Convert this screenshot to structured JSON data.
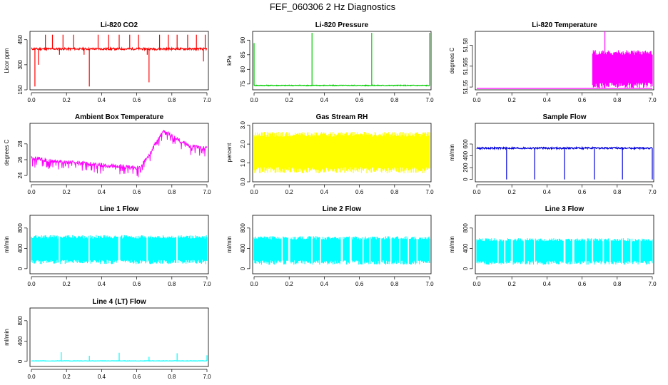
{
  "figure": {
    "title": "FEF_060306  2 Hz Diagnostics"
  },
  "chart_data": [
    {
      "id": "co2",
      "type": "line",
      "title": "Li-820 CO2",
      "ylabel": "Licor ppm",
      "xlabel": "",
      "color": "#ff0000",
      "xlim": [
        0.0,
        7.0
      ],
      "ylim": [
        150,
        500
      ],
      "xticks": [
        "0.0",
        "0.2",
        "0.4",
        "0.6",
        "0.8",
        "7.0"
      ],
      "yticks": [
        {
          "v": 150,
          "label": "150"
        },
        {
          "v": 300,
          "label": "300"
        },
        {
          "v": 450,
          "label": "450"
        }
      ],
      "baseline": 395,
      "noise": 6,
      "spikes": [
        [
          0.08,
          480
        ],
        [
          0.12,
          480
        ],
        [
          0.18,
          480
        ],
        [
          0.24,
          480
        ],
        [
          0.33,
          170
        ],
        [
          0.38,
          480
        ],
        [
          0.44,
          480
        ],
        [
          0.5,
          480
        ],
        [
          0.56,
          480
        ],
        [
          0.61,
          480
        ],
        [
          0.67,
          195
        ],
        [
          0.73,
          480
        ],
        [
          0.78,
          480
        ],
        [
          0.83,
          480
        ],
        [
          0.89,
          480
        ],
        [
          0.94,
          480
        ],
        [
          0.99,
          480
        ]
      ],
      "dips": [
        [
          0.02,
          170
        ],
        [
          0.04,
          300
        ],
        [
          0.16,
          360
        ],
        [
          0.3,
          360
        ],
        [
          0.66,
          360
        ],
        [
          0.98,
          320
        ]
      ]
    },
    {
      "id": "pressure",
      "type": "line",
      "title": "Li-820 Pressure",
      "ylabel": "kPa",
      "xlabel": "",
      "color": "#00cc00",
      "xlim": [
        0.0,
        7.0
      ],
      "ylim": [
        73,
        93
      ],
      "xticks": [
        "0.0",
        "0.2",
        "0.4",
        "0.6",
        "0.8",
        "7.0"
      ],
      "yticks": [
        {
          "v": 75,
          "label": "75"
        },
        {
          "v": 80,
          "label": "80"
        },
        {
          "v": 85,
          "label": "85"
        },
        {
          "v": 90,
          "label": "90"
        }
      ],
      "baseline": 74.5,
      "noise": 0.15,
      "spikes": [
        [
          0.0,
          89
        ],
        [
          0.33,
          92.5
        ],
        [
          0.67,
          92.5
        ],
        [
          1.0,
          92.5
        ]
      ],
      "dips": []
    },
    {
      "id": "temperature",
      "type": "line",
      "title": "Li-820 Temperature",
      "ylabel": "degrees C",
      "xlabel": "",
      "color": "#ff00ff",
      "xlim": [
        0.0,
        7.0
      ],
      "ylim": [
        51.548,
        51.59
      ],
      "xticks": [
        "0.0",
        "0.2",
        "0.4",
        "0.6",
        "0.8",
        "7.0"
      ],
      "yticks": [
        {
          "v": 51.55,
          "label": "51.55"
        },
        {
          "v": 51.565,
          "label": "51.565"
        },
        {
          "v": 51.58,
          "label": "51.58"
        }
      ],
      "baseline": 51.549,
      "band": [
        0.66,
        1.0,
        51.549,
        51.5765
      ],
      "noise": 0,
      "spikes": [
        [
          0.73,
          51.59
        ]
      ],
      "dips": []
    },
    {
      "id": "ambient",
      "type": "line",
      "title": "Ambient Box Temperature",
      "ylabel": "degrees C",
      "xlabel": "",
      "color": "#ff00ff",
      "xlim": [
        0.0,
        7.0
      ],
      "ylim": [
        23.2,
        30.6
      ],
      "xticks": [
        "0.0",
        "0.2",
        "0.4",
        "0.6",
        "0.8",
        "7.0"
      ],
      "yticks": [
        {
          "v": 24,
          "label": "24"
        },
        {
          "v": 26,
          "label": "26"
        },
        {
          "v": 28,
          "label": "28"
        }
      ],
      "profile": [
        [
          0.0,
          26.5
        ],
        [
          0.12,
          26.1
        ],
        [
          0.3,
          25.8
        ],
        [
          0.5,
          25.4
        ],
        [
          0.62,
          25.2
        ],
        [
          0.68,
          27.3
        ],
        [
          0.75,
          29.9
        ],
        [
          0.83,
          28.9
        ],
        [
          0.9,
          28.0
        ],
        [
          1.0,
          27.7
        ]
      ],
      "noise": 0.9
    },
    {
      "id": "rh",
      "type": "line",
      "title": "Gas Stream RH",
      "ylabel": "percent",
      "xlabel": "",
      "color": "#ffff00",
      "xlim": [
        0.0,
        7.0
      ],
      "ylim": [
        0.0,
        3.1
      ],
      "xticks": [
        "0.0",
        "0.2",
        "0.4",
        "0.6",
        "0.8",
        "7.0"
      ],
      "yticks": [
        {
          "v": 0.0,
          "label": "0.0"
        },
        {
          "v": 1.0,
          "label": "1.0"
        },
        {
          "v": 2.0,
          "label": "2.0"
        },
        {
          "v": 3.0,
          "label": "3.0"
        }
      ],
      "band": [
        0.0,
        1.0,
        0.45,
        2.65
      ],
      "noise": 0
    },
    {
      "id": "sample_flow",
      "type": "line",
      "title": "Sample Flow",
      "ylabel": "ml/min",
      "xlabel": "",
      "color": "#0000dd",
      "xlim": [
        0.0,
        7.0
      ],
      "ylim": [
        -40,
        950
      ],
      "xticks": [
        "0.0",
        "0.2",
        "0.4",
        "0.6",
        "0.8",
        "7.0"
      ],
      "yticks": [
        {
          "v": 0,
          "label": "0"
        },
        {
          "v": 200,
          "label": "200"
        },
        {
          "v": 400,
          "label": "400"
        },
        {
          "v": 600,
          "label": "600"
        }
      ],
      "baseline": 530,
      "noise": 15,
      "spikes": [
        [
          0.17,
          0
        ],
        [
          0.33,
          0
        ],
        [
          0.5,
          0
        ],
        [
          0.67,
          0
        ],
        [
          0.83,
          0
        ],
        [
          1.0,
          0
        ]
      ],
      "dips": []
    },
    {
      "id": "line1",
      "type": "line",
      "title": "Line 1 Flow",
      "ylabel": "ml/min",
      "xlabel": "",
      "color": "#00ffff",
      "xlim": [
        0.0,
        7.0
      ],
      "ylim": [
        -100,
        1050
      ],
      "xticks": [
        "0.0",
        "0.2",
        "0.4",
        "0.6",
        "0.8",
        "7.0"
      ],
      "yticks": [
        {
          "v": 0,
          "label": "0"
        },
        {
          "v": 400,
          "label": "400"
        },
        {
          "v": 800,
          "label": "800"
        }
      ],
      "band": [
        0.0,
        1.0,
        90,
        660
      ],
      "noise": 0,
      "gaps": [
        0.16,
        0.33,
        0.5,
        0.66,
        0.83
      ]
    },
    {
      "id": "line2",
      "type": "line",
      "title": "Line 2 Flow",
      "ylabel": "ml/min",
      "xlabel": "",
      "color": "#00ffff",
      "xlim": [
        0.0,
        7.0
      ],
      "ylim": [
        -100,
        1050
      ],
      "xticks": [
        "0.0",
        "0.2",
        "0.4",
        "0.6",
        "0.8",
        "7.0"
      ],
      "yticks": [
        {
          "v": 0,
          "label": "0"
        },
        {
          "v": 400,
          "label": "400"
        },
        {
          "v": 800,
          "label": "800"
        }
      ],
      "band": [
        0.0,
        1.0,
        80,
        640
      ],
      "noise": 0,
      "gaps": [
        0.16,
        0.2,
        0.33,
        0.38,
        0.5,
        0.55,
        0.62,
        0.66,
        0.72,
        0.78,
        0.83,
        0.88,
        0.93
      ]
    },
    {
      "id": "line3",
      "type": "line",
      "title": "Line 3 Flow",
      "ylabel": "ml/min",
      "xlabel": "",
      "color": "#00ffff",
      "xlim": [
        0.0,
        7.0
      ],
      "ylim": [
        -100,
        1050
      ],
      "xticks": [
        "0.0",
        "0.2",
        "0.4",
        "0.6",
        "0.8",
        "7.0"
      ],
      "yticks": [
        {
          "v": 0,
          "label": "0"
        },
        {
          "v": 400,
          "label": "400"
        },
        {
          "v": 800,
          "label": "800"
        }
      ],
      "band": [
        0.0,
        1.0,
        80,
        600
      ],
      "noise": 0,
      "gaps": [
        0.12,
        0.16,
        0.2,
        0.27,
        0.33,
        0.5,
        0.55,
        0.62,
        0.66,
        0.72,
        0.76,
        0.83,
        0.88,
        0.93
      ]
    },
    {
      "id": "line4",
      "type": "line",
      "title": "Line 4 (LT) Flow",
      "ylabel": "ml/min",
      "xlabel": "",
      "color": "#00ffff",
      "xlim": [
        0.0,
        7.0
      ],
      "ylim": [
        -100,
        1050
      ],
      "xticks": [
        "0.0",
        "0.2",
        "0.4",
        "0.6",
        "0.8",
        "7.0"
      ],
      "yticks": [
        {
          "v": 0,
          "label": "0"
        },
        {
          "v": 400,
          "label": "400"
        },
        {
          "v": 800,
          "label": "800"
        }
      ],
      "baseline": 10,
      "noise": 4,
      "spikes": [
        [
          0.17,
          180
        ],
        [
          0.33,
          110
        ],
        [
          0.5,
          170
        ],
        [
          0.67,
          90
        ],
        [
          0.83,
          160
        ],
        [
          1.0,
          120
        ]
      ],
      "dips": []
    }
  ]
}
